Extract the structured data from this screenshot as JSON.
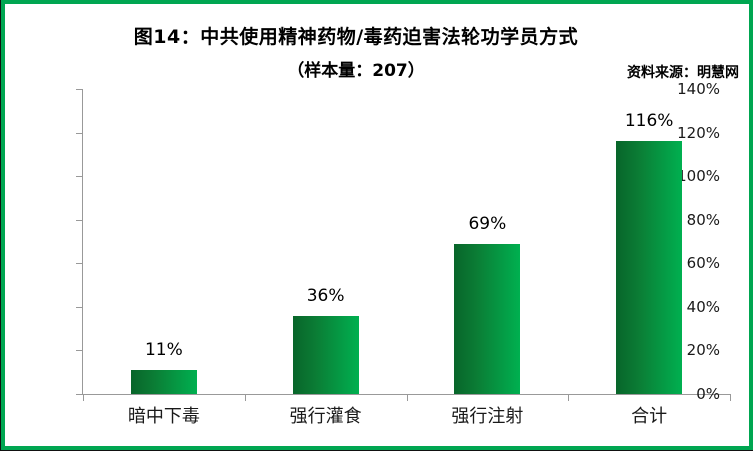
{
  "header": {
    "title": "图14：中共使用精神药物/毒药迫害法轮功学员方式",
    "subtitle": "（样本量：207）",
    "source": "资料来源：明慧网"
  },
  "chart_data": {
    "type": "bar",
    "title": "图14：中共使用精神药物/毒药迫害法轮功学员方式",
    "subtitle": "（样本量：207）",
    "source": "资料来源：明慧网",
    "categories": [
      "暗中下毒",
      "强行灌食",
      "强行注射",
      "合计"
    ],
    "values": [
      11,
      36,
      69,
      116
    ],
    "value_labels": [
      "11%",
      "36%",
      "69%",
      "116%"
    ],
    "xlabel": "",
    "ylabel": "",
    "ylim": [
      0,
      140
    ],
    "y_tick_step": 20,
    "y_tick_labels": [
      "0%",
      "20%",
      "40%",
      "60%",
      "80%",
      "100%",
      "120%",
      "140%"
    ],
    "grid": false,
    "legend": false,
    "colors": {
      "bar_gradient_left": "#08652a",
      "bar_gradient_right": "#00b050",
      "axis": "#999999",
      "border": "#00a651",
      "text": "#000000"
    }
  }
}
